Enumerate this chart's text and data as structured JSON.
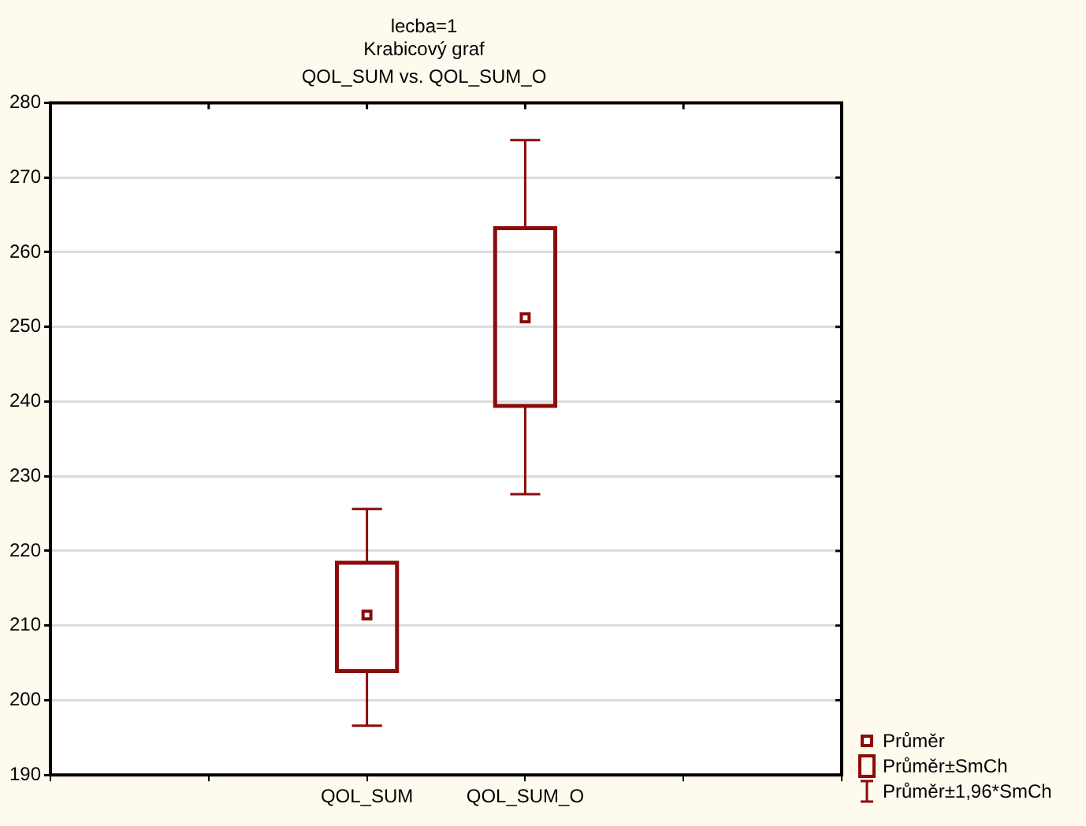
{
  "chart_data": {
    "type": "box",
    "title": "lecba=1\nKrabicový graf",
    "subtitle": "QOL_SUM vs. QOL_SUM_O",
    "categories": [
      null,
      null,
      "QOL_SUM",
      "QOL_SUM_O",
      null,
      null
    ],
    "color": "#8b0a0a",
    "boxes": [
      null,
      null,
      {
        "low": 196.6,
        "q1": 203.9,
        "q3": 218.4,
        "high": 225.6,
        "mean": 211.4
      },
      {
        "low": 227.6,
        "q1": 239.4,
        "q3": 263.2,
        "high": 275.0,
        "mean": 251.2
      },
      null,
      null
    ],
    "ylim": [
      190,
      280
    ],
    "yticks": [
      190,
      200,
      210,
      220,
      230,
      240,
      250,
      260,
      270,
      280
    ],
    "grid": "y",
    "annotations": [
      "Průměr",
      "Průměr±SmCh",
      "Průměr±1,96*SmCh"
    ]
  }
}
